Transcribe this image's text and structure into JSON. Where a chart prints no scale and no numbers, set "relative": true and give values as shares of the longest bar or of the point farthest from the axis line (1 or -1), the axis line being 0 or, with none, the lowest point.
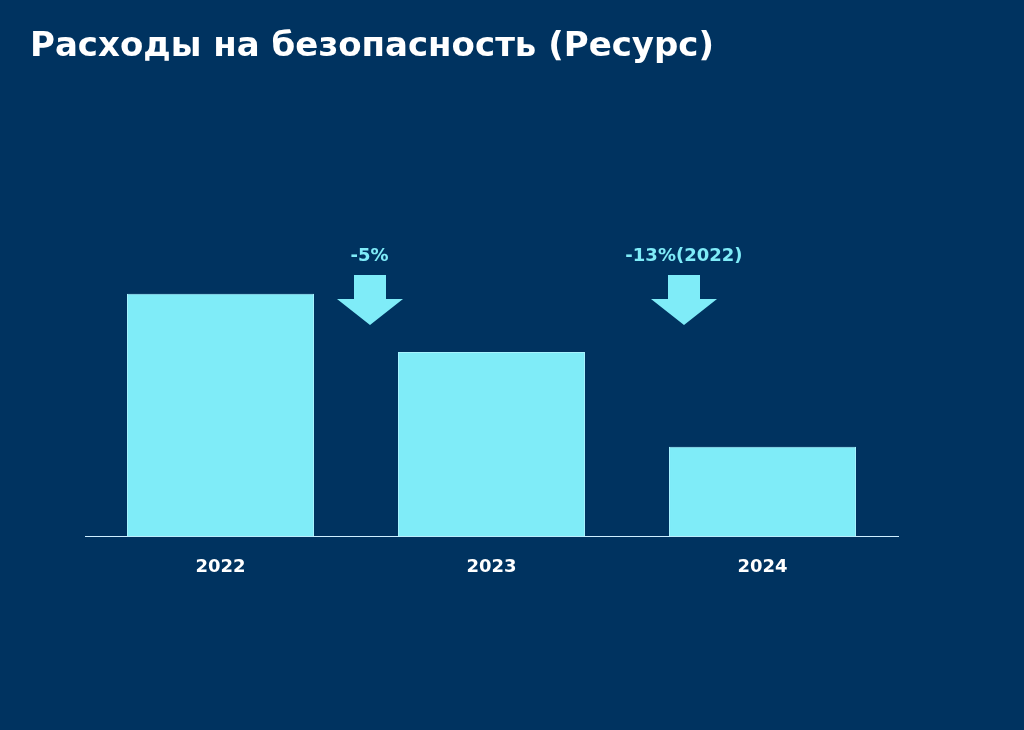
{
  "chart_data": {
    "type": "bar",
    "title": "Расходы на безопасность (Ресурс)",
    "categories": [
      "2022",
      "2023",
      "2024"
    ],
    "values": [
      1,
      0.76,
      0.37
    ],
    "color": "#7fecf8",
    "relative": true,
    "grid": false,
    "legend": false,
    "annotations": [
      "-5%",
      "-13%(2022)"
    ]
  }
}
